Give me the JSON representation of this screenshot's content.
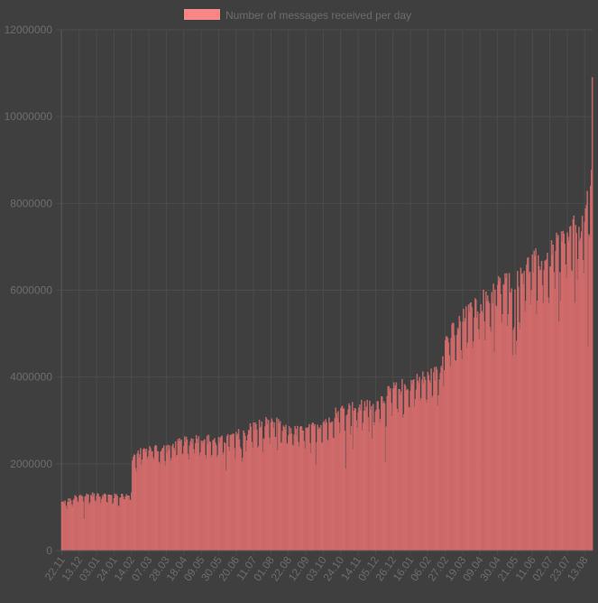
{
  "chart_data": {
    "type": "bar",
    "title": "",
    "xlabel": "",
    "ylabel": "",
    "ylim": [
      0,
      12000000
    ],
    "y_ticks": [
      0,
      2000000,
      4000000,
      6000000,
      8000000,
      10000000,
      12000000
    ],
    "y_tick_labels": [
      "0",
      "2000000",
      "4000000",
      "6000000",
      "8000000",
      "10000000",
      "12000000"
    ],
    "grid": true,
    "legend_position": "top-center",
    "x_tick_labels": [
      "22.11",
      "13.12",
      "03.01",
      "24.01",
      "14.02",
      "07.03",
      "28.03",
      "18.04",
      "09.05",
      "30.05",
      "20.06",
      "11.07",
      "01.08",
      "22.08",
      "12.09",
      "03.10",
      "24.10",
      "14.11",
      "05.12",
      "26.12",
      "16.01",
      "06.02",
      "27.02",
      "19.03",
      "09.04",
      "30.04",
      "21.05",
      "11.06",
      "02.07",
      "23.07",
      "13.08"
    ],
    "x_tick_interval_days": 21,
    "series": [
      {
        "name": "Number of messages received per day",
        "color": "#f98686",
        "fill_color": "#b95c5c",
        "anchor_days": [
          0,
          21,
          42,
          63,
          84,
          85,
          105,
          126,
          147,
          168,
          189,
          210,
          231,
          252,
          273,
          294,
          315,
          336,
          357,
          378,
          399,
          420,
          441,
          455,
          462,
          483,
          504,
          525,
          546,
          567,
          588,
          602,
          609,
          630,
          640
        ],
        "anchor_values": [
          1100000,
          1250000,
          1300000,
          1250000,
          1300000,
          2150000,
          2350000,
          2350000,
          2500000,
          2600000,
          2500000,
          2650000,
          2850000,
          3000000,
          2750000,
          2750000,
          2950000,
          3250000,
          3300000,
          3350000,
          3700000,
          3850000,
          4000000,
          4100000,
          4800000,
          5300000,
          5700000,
          6050000,
          6300000,
          6600000,
          6800000,
          7100000,
          7200000,
          7600000,
          9000000
        ],
        "last_value": 10900000,
        "num_days": 640
      }
    ]
  }
}
